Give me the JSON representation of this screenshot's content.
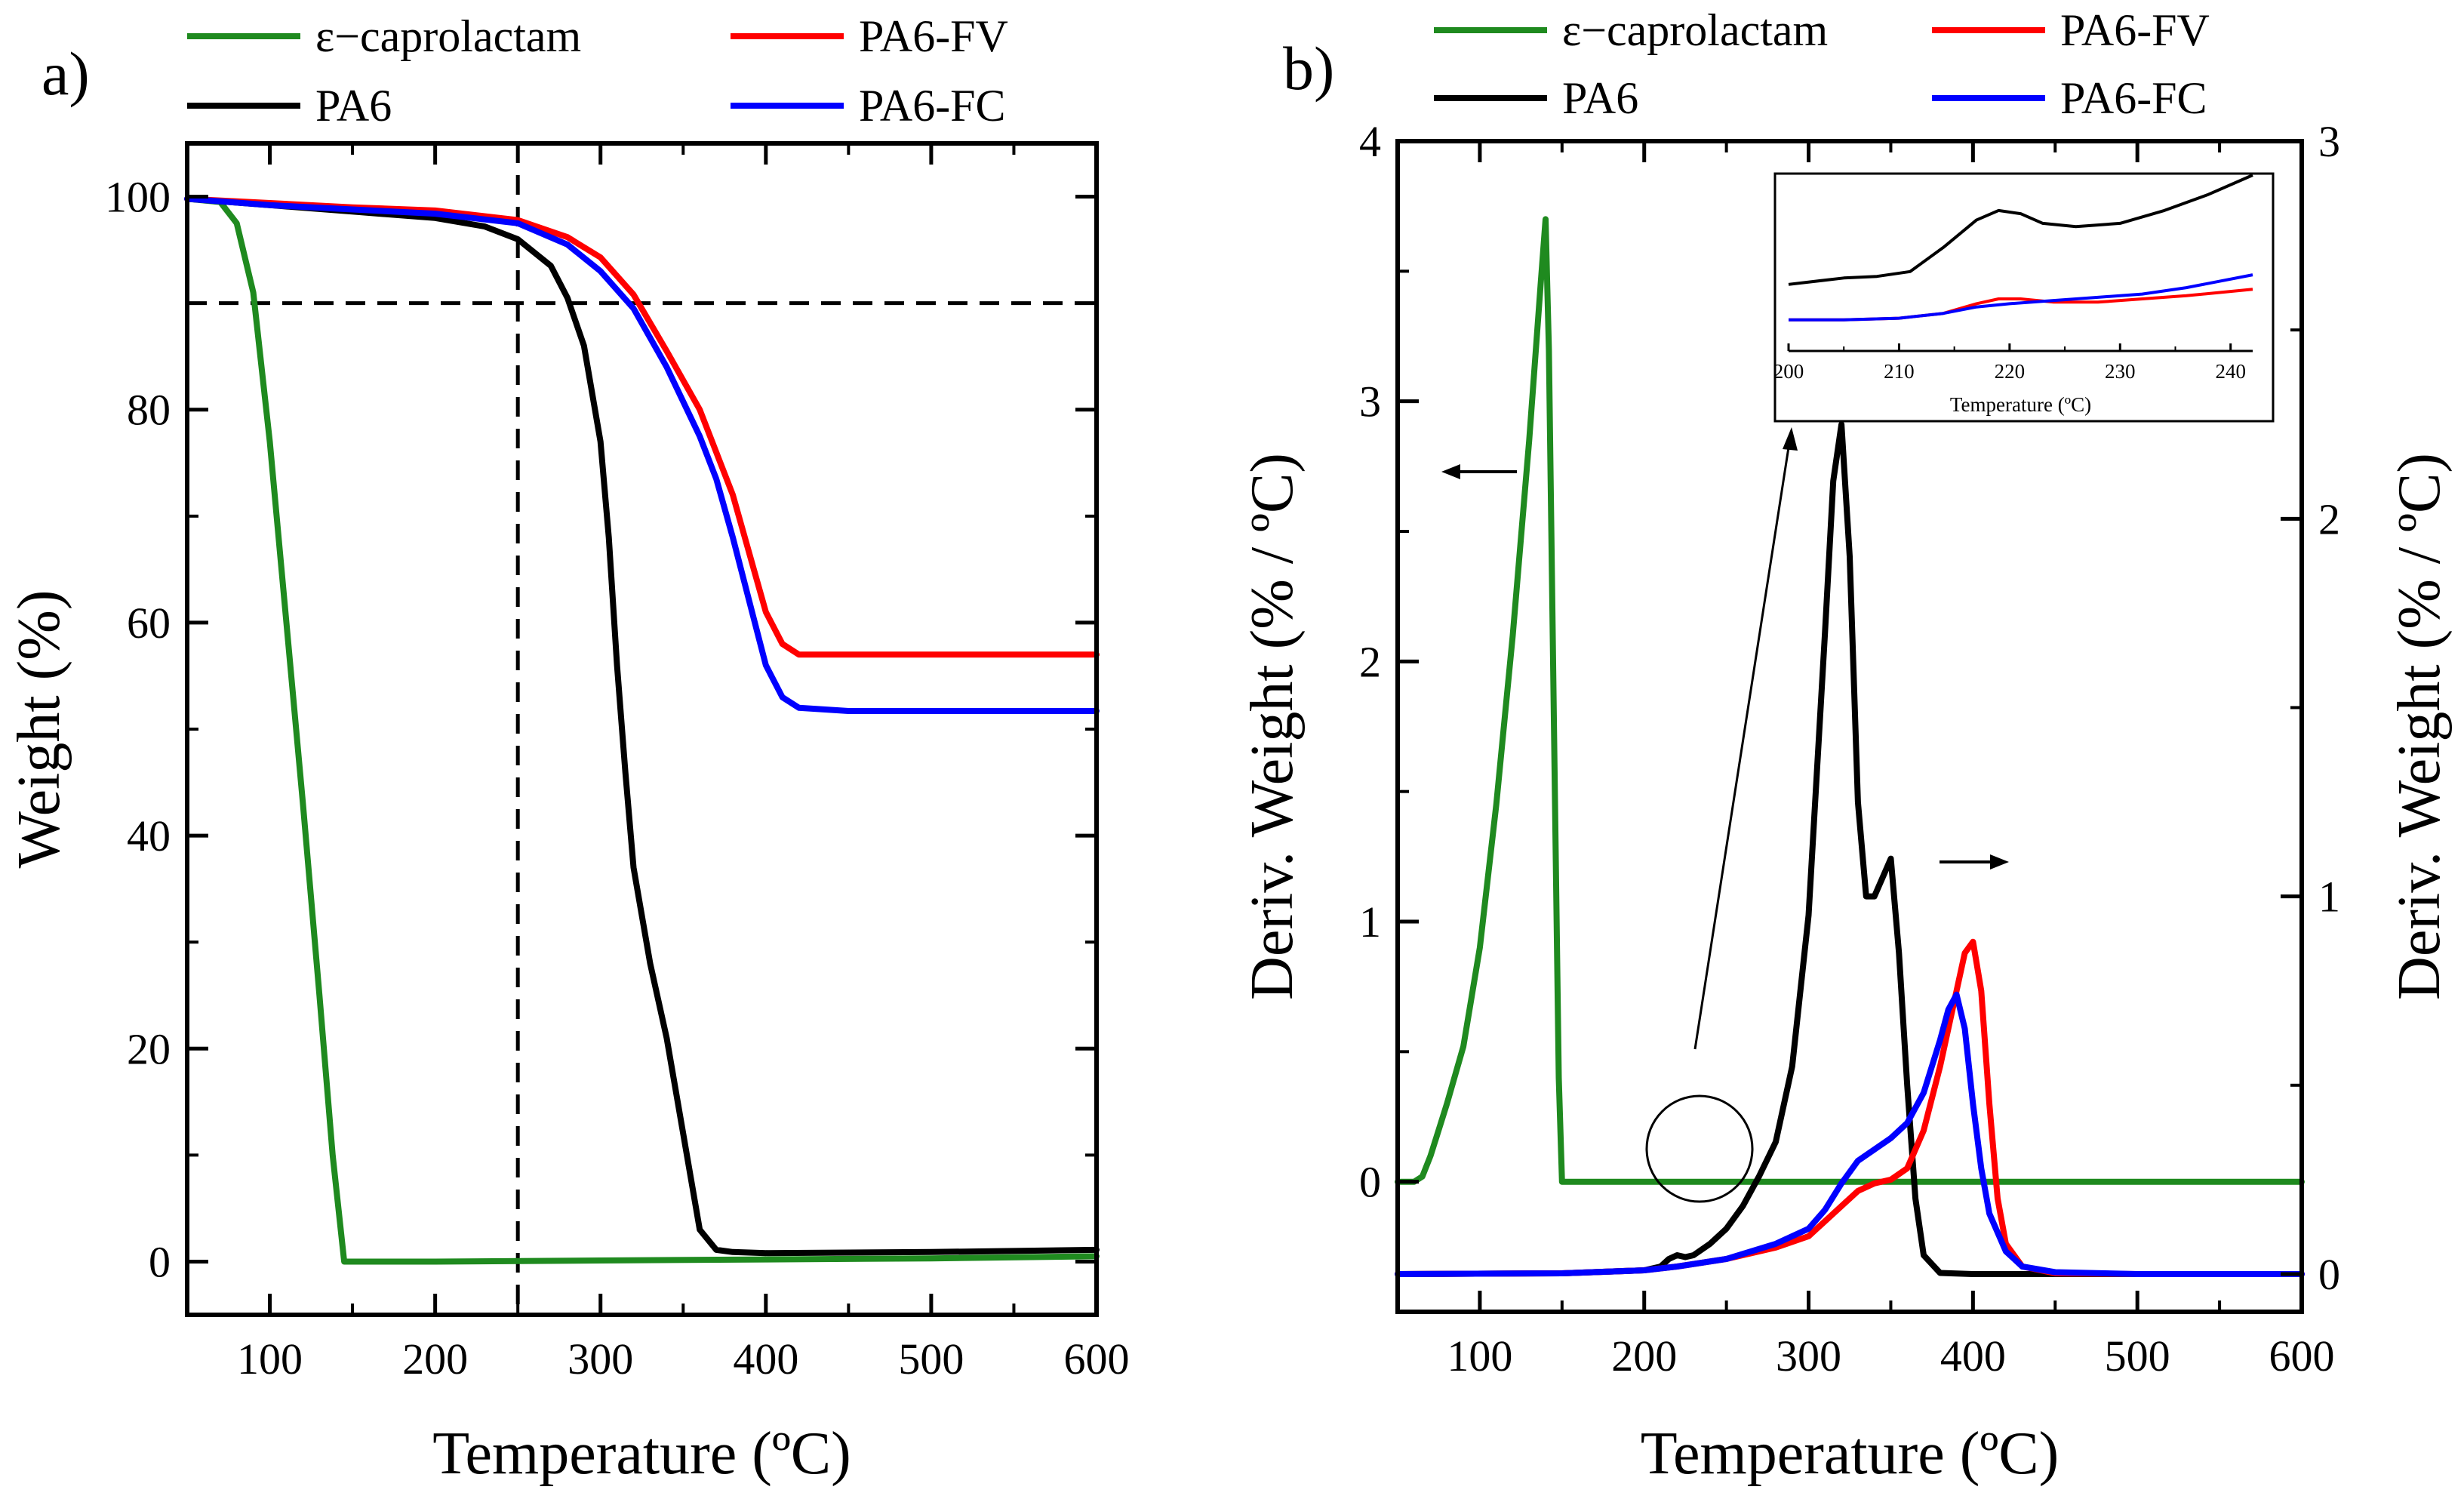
{
  "chart_data": [
    {
      "panel": "a)",
      "type": "line",
      "xlabel": "Temperature (ºC)",
      "ylabel": "Weight (%)",
      "xlim": [
        50,
        600
      ],
      "ylim": [
        -5,
        105
      ],
      "xticks": [
        100,
        200,
        300,
        400,
        500,
        600
      ],
      "yticks": [
        0,
        20,
        40,
        60,
        80,
        100
      ],
      "reference_lines": {
        "vertical_x": 250,
        "horizontal_y": 90
      },
      "legend": [
        "ε−caprolactam",
        "PA6-FV",
        "PA6",
        "PA6-FC"
      ],
      "series": [
        {
          "name": "ε−caprolactam",
          "color": "#1f8a1f",
          "x": [
            50,
            70,
            80,
            90,
            100,
            110,
            120,
            130,
            138,
            145,
            150,
            200,
            300,
            400,
            500,
            600
          ],
          "y": [
            99.8,
            99.5,
            97.5,
            91,
            77,
            60,
            43,
            25,
            10,
            0,
            0,
            0,
            0.1,
            0.2,
            0.3,
            0.5
          ]
        },
        {
          "name": "PA6",
          "color": "#000000",
          "x": [
            50,
            100,
            150,
            200,
            230,
            250,
            270,
            280,
            290,
            300,
            305,
            310,
            315,
            320,
            330,
            340,
            350,
            360,
            370,
            380,
            400,
            500,
            600
          ],
          "y": [
            99.8,
            99.2,
            98.6,
            98,
            97.2,
            96,
            93.5,
            90.5,
            86,
            77,
            68,
            56,
            46,
            37,
            28,
            21,
            12,
            3,
            1.1,
            0.9,
            0.8,
            0.9,
            1.1
          ]
        },
        {
          "name": "PA6-FV",
          "color": "#ff0000",
          "x": [
            50,
            100,
            150,
            200,
            250,
            280,
            300,
            320,
            340,
            360,
            380,
            390,
            400,
            410,
            420,
            450,
            500,
            600
          ],
          "y": [
            99.8,
            99.4,
            99,
            98.7,
            97.8,
            96.2,
            94.3,
            90.8,
            85.5,
            80,
            72,
            66.5,
            61,
            58,
            57,
            57,
            57,
            57
          ]
        },
        {
          "name": "PA6-FC",
          "color": "#0000ff",
          "x": [
            50,
            100,
            150,
            200,
            250,
            280,
            300,
            320,
            340,
            360,
            370,
            380,
            390,
            400,
            410,
            420,
            450,
            500,
            600
          ],
          "y": [
            99.8,
            99.2,
            98.8,
            98.4,
            97.5,
            95.5,
            93,
            89.5,
            84,
            77.5,
            73.5,
            68,
            62,
            56,
            53,
            52,
            51.7,
            51.7,
            51.7
          ]
        }
      ]
    },
    {
      "panel": "b)",
      "type": "line",
      "xlabel": "Temperature (ºC)",
      "ylabel_left": "Deriv. Weight (% / ºC)",
      "ylabel_right": "Deriv. Weight (% / ºC)",
      "xlim": [
        50,
        600
      ],
      "ylim_left": [
        -0.5,
        4
      ],
      "ylim_right": [
        -0.1,
        3
      ],
      "xticks": [
        100,
        200,
        300,
        400,
        500,
        600
      ],
      "yticks_left": [
        0,
        1,
        2,
        3,
        4
      ],
      "yticks_right": [
        0,
        1,
        2,
        3
      ],
      "legend": [
        "ε−caprolactam",
        "PA6-FV",
        "PA6",
        "PA6-FC"
      ],
      "series": [
        {
          "name": "ε−caprolactam",
          "axis": "left",
          "color": "#1f8a1f",
          "x": [
            50,
            60,
            65,
            70,
            75,
            80,
            90,
            100,
            110,
            120,
            130,
            137,
            140,
            142,
            145,
            148,
            150,
            200,
            300,
            400,
            500,
            600
          ],
          "y": [
            0,
            0,
            0.02,
            0.1,
            0.2,
            0.3,
            0.52,
            0.9,
            1.45,
            2.1,
            2.85,
            3.45,
            3.7,
            3.2,
            1.8,
            0.4,
            0,
            0,
            0,
            0,
            0,
            0
          ]
        },
        {
          "name": "PA6",
          "axis": "right",
          "color": "#000000",
          "x": [
            50,
            150,
            200,
            210,
            215,
            220,
            225,
            230,
            240,
            250,
            260,
            270,
            280,
            290,
            300,
            310,
            315,
            320,
            325,
            330,
            335,
            340,
            345,
            350,
            355,
            360,
            365,
            370,
            380,
            400,
            500,
            600
          ],
          "y": [
            0,
            0.002,
            0.01,
            0.02,
            0.04,
            0.05,
            0.045,
            0.05,
            0.08,
            0.12,
            0.18,
            0.26,
            0.35,
            0.55,
            0.95,
            1.7,
            2.1,
            2.25,
            1.9,
            1.25,
            1.0,
            1.0,
            1.05,
            1.1,
            0.85,
            0.5,
            0.2,
            0.05,
            0.003,
            0,
            0,
            0
          ]
        },
        {
          "name": "PA6-FV",
          "axis": "right",
          "color": "#ff0000",
          "x": [
            50,
            150,
            200,
            220,
            250,
            280,
            300,
            320,
            330,
            340,
            350,
            360,
            370,
            380,
            390,
            395,
            400,
            405,
            410,
            415,
            420,
            430,
            450,
            500,
            600
          ],
          "y": [
            0,
            0.002,
            0.01,
            0.02,
            0.04,
            0.07,
            0.1,
            0.18,
            0.22,
            0.24,
            0.25,
            0.28,
            0.38,
            0.55,
            0.75,
            0.85,
            0.88,
            0.75,
            0.45,
            0.2,
            0.08,
            0.02,
            0.002,
            0,
            0
          ]
        },
        {
          "name": "PA6-FC",
          "axis": "right",
          "color": "#0000ff",
          "x": [
            50,
            150,
            200,
            220,
            250,
            280,
            300,
            310,
            320,
            330,
            340,
            350,
            360,
            370,
            380,
            385,
            390,
            395,
            400,
            405,
            410,
            420,
            430,
            450,
            500,
            600
          ],
          "y": [
            0,
            0.002,
            0.01,
            0.02,
            0.04,
            0.08,
            0.12,
            0.17,
            0.24,
            0.3,
            0.33,
            0.36,
            0.4,
            0.48,
            0.62,
            0.7,
            0.74,
            0.65,
            0.45,
            0.28,
            0.16,
            0.06,
            0.02,
            0.005,
            0,
            0
          ]
        }
      ],
      "annotations": {
        "left_arrow_points_to": "left axis",
        "right_arrow_points_to": "right axis"
      },
      "inset": {
        "xlabel": "Temperature (ºC)",
        "xlim": [
          200,
          242
        ],
        "xticks": [
          200,
          210,
          220,
          230,
          240
        ],
        "series": [
          {
            "name": "PA6",
            "color": "#000000",
            "x": [
              200,
              205,
              208,
              211,
              214,
              217,
              219,
              221,
              223,
              226,
              230,
              234,
              238,
              242
            ],
            "y": [
              0.32,
              0.36,
              0.37,
              0.4,
              0.55,
              0.72,
              0.78,
              0.76,
              0.7,
              0.68,
              0.7,
              0.78,
              0.88,
              1.0
            ]
          },
          {
            "name": "PA6-FV",
            "color": "#ff0000",
            "x": [
              200,
              205,
              210,
              214,
              217,
              219,
              221,
              224,
              228,
              232,
              236,
              242
            ],
            "y": [
              0.1,
              0.1,
              0.11,
              0.14,
              0.2,
              0.23,
              0.23,
              0.21,
              0.21,
              0.23,
              0.25,
              0.29
            ]
          },
          {
            "name": "PA6-FC",
            "color": "#0000ff",
            "x": [
              200,
              205,
              210,
              214,
              217,
              220,
              224,
              228,
              232,
              236,
              242
            ],
            "y": [
              0.1,
              0.1,
              0.11,
              0.14,
              0.18,
              0.2,
              0.22,
              0.24,
              0.26,
              0.3,
              0.38
            ]
          }
        ]
      }
    }
  ]
}
